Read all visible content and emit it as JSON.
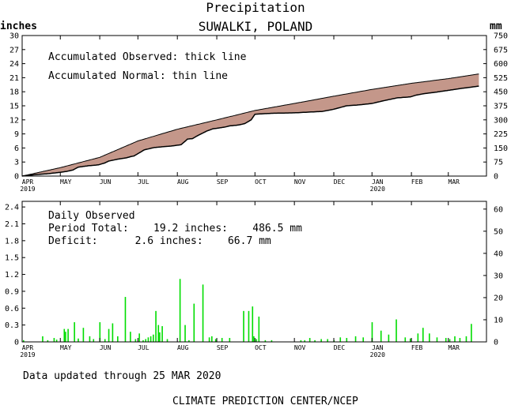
{
  "header": {
    "title": "Precipitation",
    "subtitle": "SUWALKI, POLAND",
    "unit_left": "inches",
    "unit_right": "mm"
  },
  "legend": {
    "observed": "Accumulated Observed: thick line",
    "normal": "Accumulated Normal: thin line",
    "daily_title": "Daily Observed",
    "period_total": "Period Total:    19.2 inches:    486.5 mm",
    "deficit": "Deficit:      2.6 inches:    66.7 mm"
  },
  "footer": {
    "updated": "Data updated through 25 MAR 2020",
    "credit": "CLIMATE PREDICTION CENTER/NCEP"
  },
  "x_axis": {
    "months": [
      "APR",
      "MAY",
      "JUN",
      "JUL",
      "AUG",
      "SEP",
      "OCT",
      "NOV",
      "DEC",
      "JAN",
      "FEB",
      "MAR"
    ],
    "year_labels": [
      {
        "month": "APR",
        "text": "2019"
      },
      {
        "month": "JAN",
        "text": "2020"
      }
    ]
  },
  "colors": {
    "deficit_fill": "#c4978a",
    "daily_bars": "#00dd00",
    "line": "#000000"
  },
  "chart_data": [
    {
      "type": "area",
      "title": "",
      "ylabel": "inches",
      "y2label": "mm",
      "ylim": [
        0,
        30
      ],
      "y2lim": [
        0,
        750
      ],
      "yticks": [
        "0",
        "3",
        "6",
        "9",
        "12",
        "15",
        "18",
        "21",
        "24",
        "27",
        "30"
      ],
      "y2ticks": [
        "0",
        "75",
        "150",
        "225",
        "300",
        "375",
        "450",
        "525",
        "600",
        "675",
        "750"
      ],
      "x_unit": "days since 1 APR 2019",
      "series": [
        {
          "name": "Accumulated Normal",
          "x": [
            0,
            30,
            61,
            91,
            122,
            153,
            183,
            214,
            244,
            275,
            306,
            335,
            359
          ],
          "values": [
            0.0,
            1.8,
            4.0,
            7.5,
            10.0,
            12.0,
            14.0,
            15.5,
            17.0,
            18.5,
            19.8,
            20.8,
            21.8
          ]
        },
        {
          "name": "Accumulated Observed",
          "x": [
            0,
            10,
            20,
            30,
            35,
            40,
            44,
            52,
            60,
            65,
            68,
            75,
            82,
            86,
            88,
            96,
            104,
            108,
            112,
            117,
            125,
            130,
            134,
            137,
            145,
            150,
            153,
            160,
            163,
            170,
            175,
            180,
            183,
            196,
            214,
            236,
            244,
            255,
            265,
            275,
            286,
            295,
            305,
            310,
            316,
            325,
            335,
            345,
            359
          ],
          "values": [
            0.0,
            0.3,
            0.5,
            0.8,
            1.0,
            1.3,
            1.9,
            2.2,
            2.4,
            2.8,
            3.2,
            3.6,
            3.9,
            4.2,
            4.3,
            5.6,
            6.1,
            6.2,
            6.3,
            6.4,
            6.7,
            7.9,
            8.0,
            8.5,
            9.6,
            10.1,
            10.2,
            10.5,
            10.7,
            10.9,
            11.2,
            12.0,
            13.2,
            13.4,
            13.5,
            13.8,
            14.2,
            15.0,
            15.2,
            15.5,
            16.2,
            16.7,
            16.9,
            17.3,
            17.6,
            17.9,
            18.3,
            18.7,
            19.2
          ]
        }
      ]
    },
    {
      "type": "bar",
      "title": "Daily Observed",
      "ylabel": "inches",
      "y2label": "mm",
      "ylim": [
        0,
        2.5
      ],
      "y2lim": [
        0,
        63.5
      ],
      "yticks": [
        "0",
        "0.3",
        "0.6",
        "0.9",
        "1.2",
        "1.5",
        "1.8",
        "2.1",
        "2.4"
      ],
      "y2ticks": [
        "0",
        "10",
        "20",
        "30",
        "40",
        "50",
        "60"
      ],
      "x_unit": "days since 1 APR 2019",
      "x": [
        1,
        16,
        20,
        25,
        27,
        33,
        34,
        36,
        41,
        44,
        48,
        53,
        56,
        61,
        65,
        68,
        71,
        75,
        81,
        85,
        89,
        92,
        95,
        97,
        99,
        101,
        103,
        105,
        107,
        108,
        110,
        114,
        124,
        128,
        131,
        135,
        142,
        147,
        149,
        152,
        157,
        163,
        174,
        178,
        181,
        182,
        184,
        186,
        191,
        196,
        219,
        222,
        226,
        230,
        235,
        240,
        245,
        250,
        255,
        262,
        268,
        275,
        282,
        288,
        294,
        301,
        305,
        311,
        315,
        320,
        326,
        333,
        336,
        340,
        344,
        349,
        353
      ],
      "values": [
        0.03,
        0.1,
        0.03,
        0.07,
        0.04,
        0.23,
        0.18,
        0.23,
        0.35,
        0.06,
        0.25,
        0.1,
        0.05,
        0.35,
        0.05,
        0.23,
        0.33,
        0.1,
        0.8,
        0.18,
        0.05,
        0.15,
        0.03,
        0.05,
        0.08,
        0.1,
        0.13,
        0.55,
        0.3,
        0.17,
        0.28,
        0.05,
        1.12,
        0.3,
        0.03,
        0.68,
        1.02,
        0.08,
        0.1,
        0.05,
        0.07,
        0.07,
        0.55,
        0.55,
        0.63,
        0.1,
        0.05,
        0.45,
        0.03,
        0.03,
        0.03,
        0.03,
        0.07,
        0.03,
        0.05,
        0.05,
        0.03,
        0.08,
        0.07,
        0.1,
        0.08,
        0.35,
        0.2,
        0.13,
        0.4,
        0.08,
        0.06,
        0.15,
        0.25,
        0.15,
        0.08,
        0.07,
        0.05,
        0.1,
        0.07,
        0.1,
        0.32
      ]
    }
  ]
}
